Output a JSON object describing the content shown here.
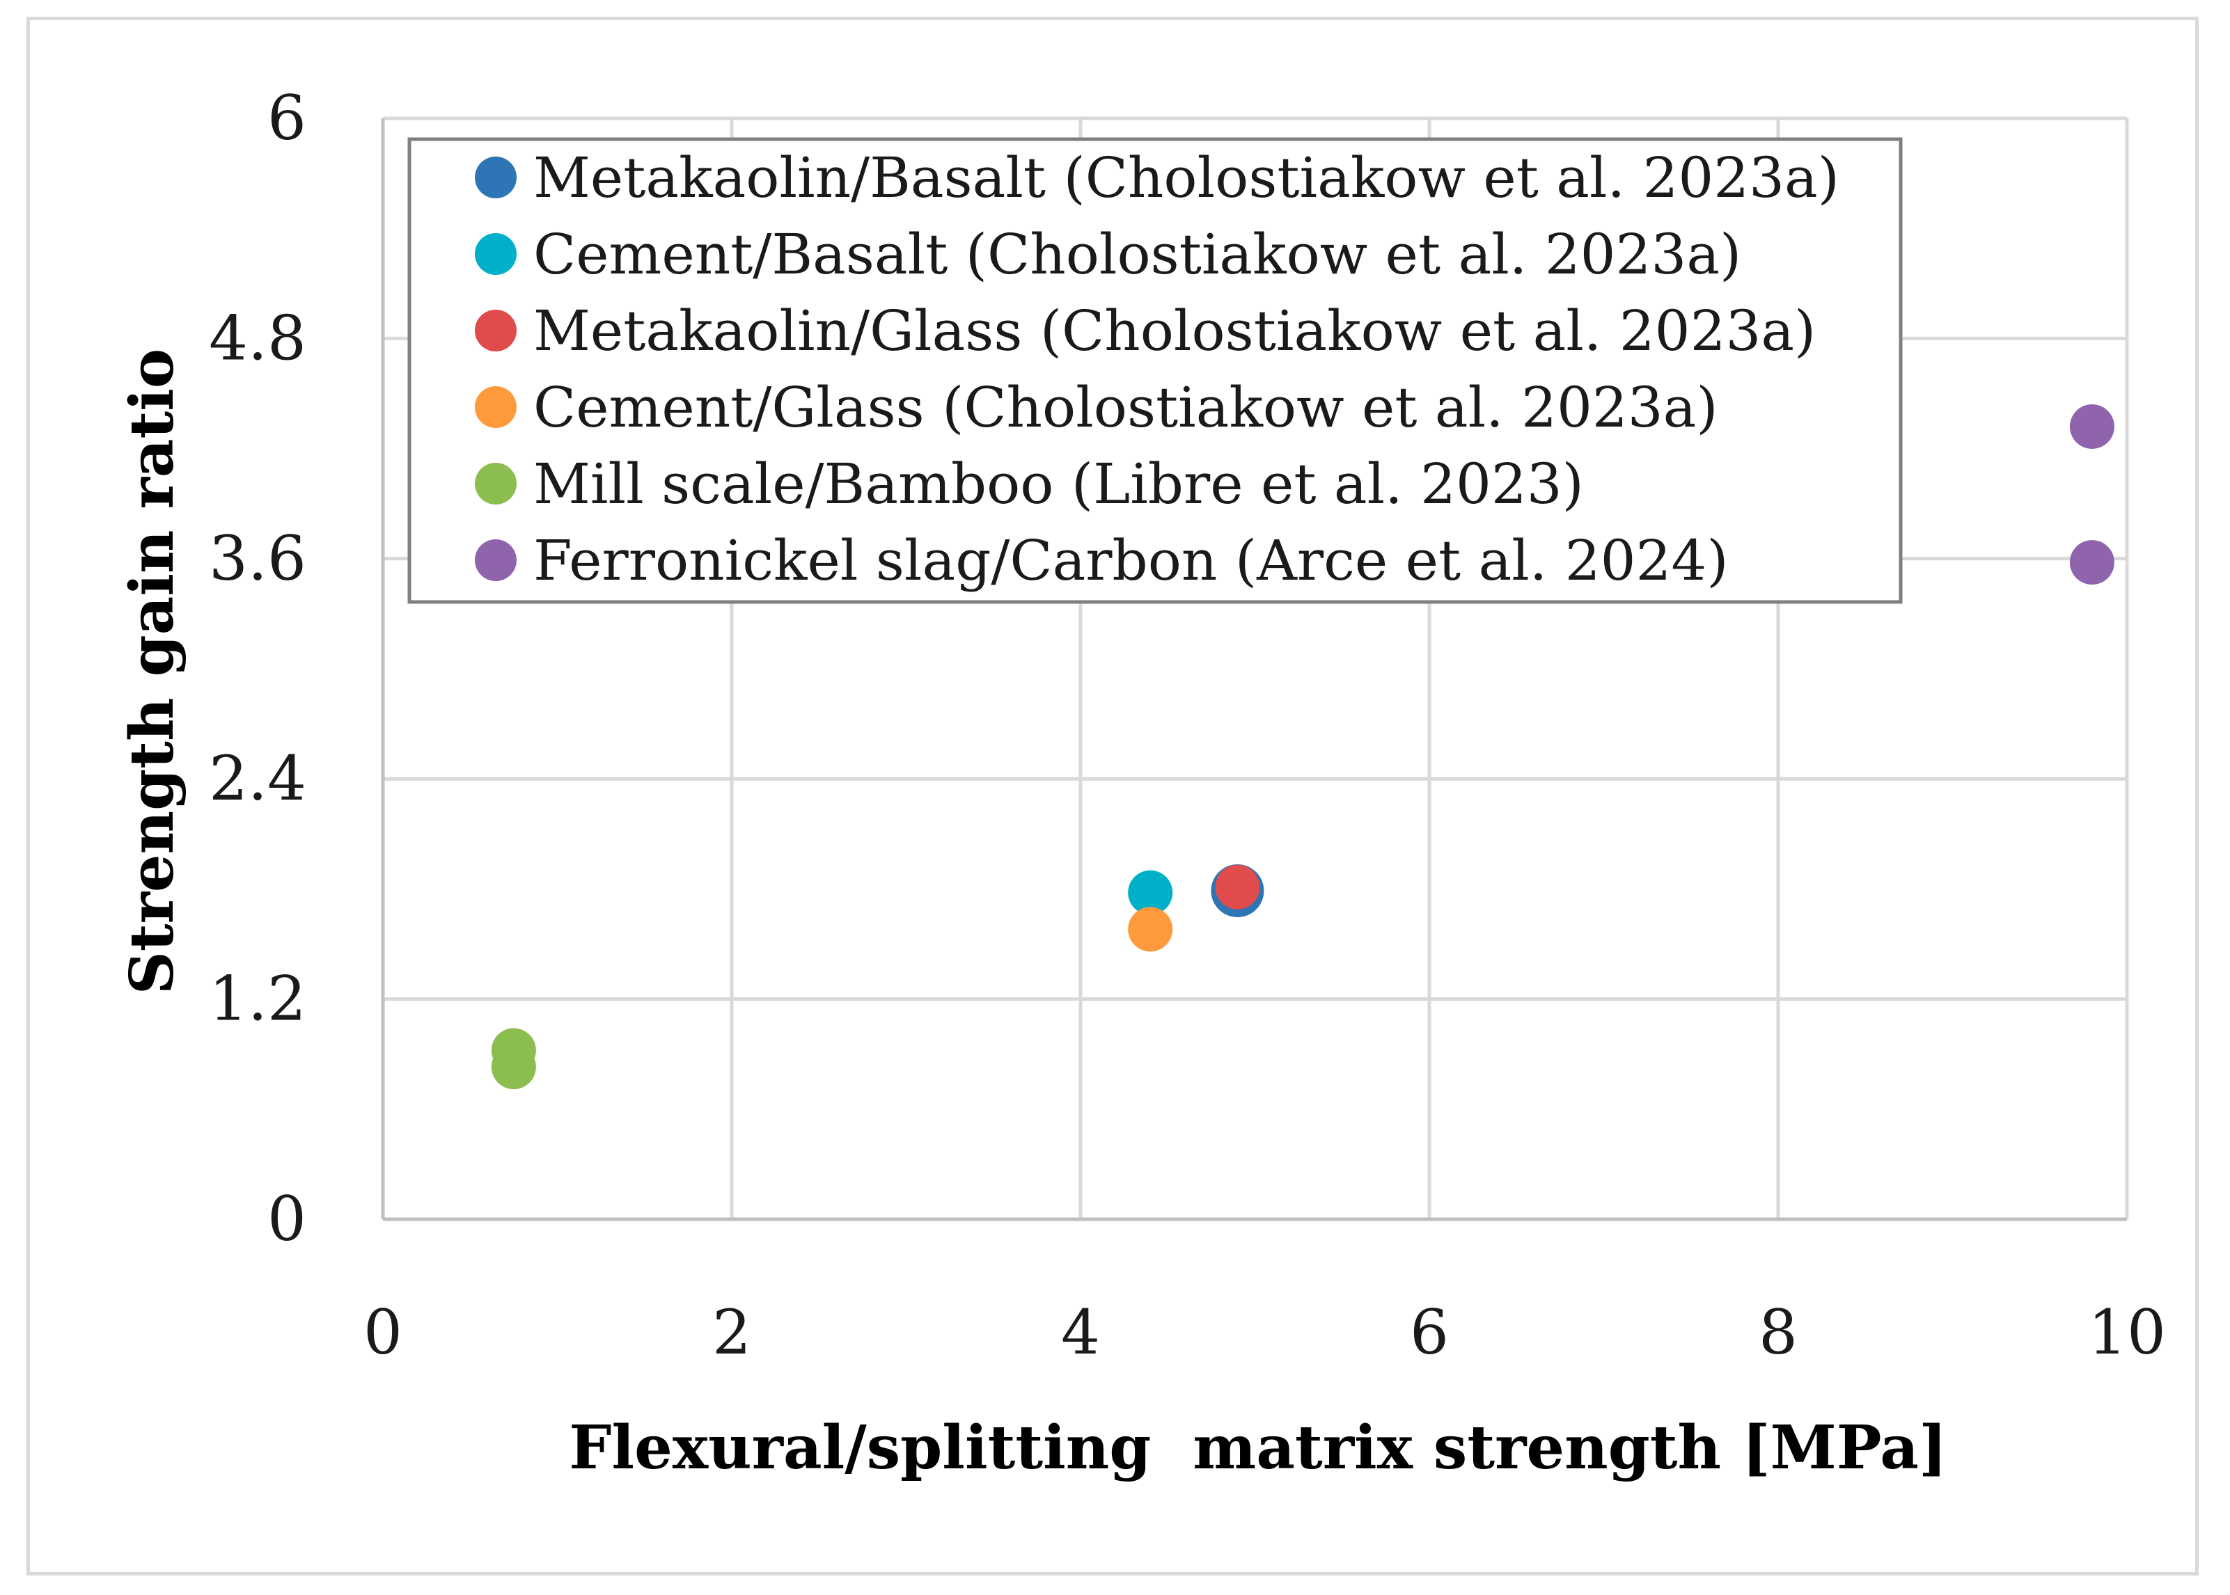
{
  "chart_data": {
    "type": "scatter",
    "title": "",
    "xlabel": "Flexural/splitting  matrix strength [MPa]",
    "ylabel": "Strength gain ratio",
    "xlim": [
      0,
      10
    ],
    "ylim": [
      0,
      6
    ],
    "x_ticks": [
      0,
      2,
      4,
      6,
      8,
      10
    ],
    "y_ticks": [
      0,
      1.2,
      2.4,
      3.6,
      4.8,
      6
    ],
    "x_tick_labels": [
      "0",
      "2",
      "4",
      "6",
      "8",
      "10"
    ],
    "y_tick_labels": [
      "0",
      "1.2",
      "2.4",
      "3.6",
      "4.8",
      "6"
    ],
    "grid": true,
    "legend_position": "top-left",
    "series": [
      {
        "name": "Metakaolin/Basalt (Cholostiakow et al. 2023a)",
        "color": "#2e75b6",
        "points": [
          [
            4.9,
            1.79
          ]
        ]
      },
      {
        "name": "Cement/Basalt (Cholostiakow et al. 2023a)",
        "color": "#00b0c8",
        "points": [
          [
            4.4,
            1.78
          ]
        ]
      },
      {
        "name": "Metakaolin/Glass (Cholostiakow et al. 2023a)",
        "color": "#e04b4b",
        "points": [
          [
            4.9,
            1.81
          ]
        ]
      },
      {
        "name": "Cement/Glass (Cholostiakow et al. 2023a)",
        "color": "#ff9a3c",
        "points": [
          [
            4.4,
            1.58
          ]
        ]
      },
      {
        "name": "Mill scale/Bamboo (Libre et al. 2023)",
        "color": "#8cbd4f",
        "points": [
          [
            0.75,
            0.92
          ],
          [
            0.75,
            0.83
          ]
        ]
      },
      {
        "name": "Ferronickel slag/Carbon (Arce et al. 2024)",
        "color": "#8f64ad",
        "points": [
          [
            9.8,
            4.32
          ],
          [
            9.8,
            3.58
          ]
        ]
      }
    ]
  }
}
